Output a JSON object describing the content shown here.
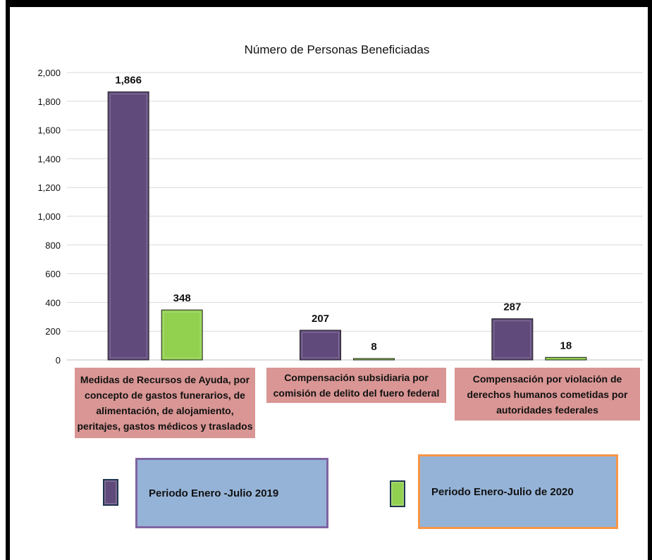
{
  "chart_data": {
    "type": "bar",
    "title": "Número de Personas Beneficiadas",
    "categories": [
      "Medidas de Recursos de Ayuda, por concepto de gastos funerarios, de alimentación, de alojamiento, peritajes, gastos médicos y traslados",
      "Compensación subsidiaria por comisión de delito del fuero federal",
      "Compensación por violación de derechos humanos cometidas por autoridades federales"
    ],
    "series": [
      {
        "name": "Periodo Enero -Julio 2019",
        "values": [
          1866,
          207,
          287
        ],
        "labels": [
          "1,866",
          "207",
          "287"
        ],
        "color": "#604a7b"
      },
      {
        "name": "Periodo Enero-Julio de 2020",
        "values": [
          348,
          8,
          18
        ],
        "labels": [
          "348",
          "8",
          "18"
        ],
        "color": "#92d050"
      }
    ],
    "ylim": [
      0,
      2000
    ],
    "yticks": [
      0,
      200,
      400,
      600,
      800,
      1000,
      1200,
      1400,
      1600,
      1800,
      2000
    ],
    "ytick_labels": [
      "0",
      "200",
      "400",
      "600",
      "800",
      "1,000",
      "1,200",
      "1,400",
      "1,600",
      "1,800",
      "2,000"
    ],
    "grid": true,
    "legend_position": "bottom"
  }
}
